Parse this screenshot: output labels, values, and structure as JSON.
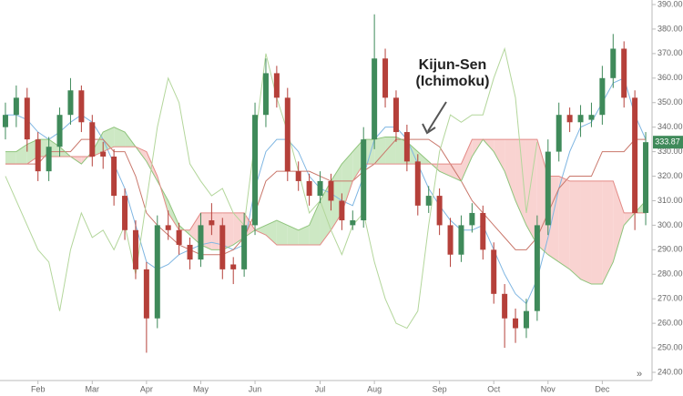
{
  "chart_data": {
    "type": "candlestick",
    "categories": [
      null,
      null,
      null,
      "Feb",
      null,
      null,
      null,
      null,
      "Mar",
      null,
      null,
      null,
      null,
      "Apr",
      null,
      null,
      null,
      null,
      "May",
      null,
      null,
      null,
      null,
      "Jun",
      null,
      null,
      null,
      null,
      null,
      "Jul",
      null,
      null,
      null,
      null,
      "Aug",
      null,
      null,
      null,
      null,
      null,
      "Sep",
      null,
      null,
      null,
      null,
      "Oct",
      null,
      null,
      null,
      null,
      "Nov",
      null,
      null,
      null,
      null,
      "Dec",
      null,
      null,
      null,
      null
    ],
    "open": [
      340,
      345,
      352,
      335,
      322,
      332,
      345,
      355,
      342,
      330,
      328,
      312,
      298,
      282,
      262,
      300,
      298,
      292,
      286,
      302,
      300,
      284,
      282,
      300,
      345,
      362,
      352,
      322,
      318,
      312,
      318,
      310,
      300,
      302,
      335,
      368,
      352,
      338,
      326,
      308,
      312,
      300,
      288,
      300,
      305,
      290,
      272,
      262,
      258,
      265,
      300,
      330,
      345,
      342,
      343,
      345,
      360,
      372,
      352,
      305
    ],
    "high": [
      350,
      357,
      356,
      338,
      336,
      348,
      360,
      357,
      345,
      334,
      331,
      315,
      302,
      285,
      304,
      306,
      301,
      295,
      305,
      309,
      303,
      287,
      305,
      350,
      368,
      365,
      356,
      326,
      321,
      322,
      321,
      313,
      306,
      340,
      386,
      372,
      355,
      341,
      329,
      316,
      315,
      303,
      304,
      309,
      308,
      293,
      276,
      266,
      270,
      304,
      335,
      350,
      348,
      349,
      350,
      365,
      378,
      375,
      355,
      338
    ],
    "low": [
      335,
      340,
      330,
      318,
      318,
      328,
      341,
      338,
      324,
      323,
      308,
      294,
      278,
      248,
      258,
      294,
      288,
      282,
      283,
      296,
      278,
      276,
      279,
      296,
      340,
      348,
      318,
      314,
      308,
      309,
      306,
      298,
      298,
      299,
      331,
      348,
      334,
      322,
      304,
      305,
      296,
      283,
      285,
      297,
      286,
      268,
      250,
      252,
      254,
      261,
      296,
      326,
      338,
      336,
      340,
      341,
      356,
      348,
      298,
      300
    ],
    "close": [
      345,
      352,
      335,
      322,
      332,
      345,
      355,
      342,
      328,
      328,
      312,
      298,
      282,
      262,
      300,
      298,
      292,
      286,
      300,
      300,
      282,
      282,
      300,
      345,
      362,
      352,
      322,
      318,
      312,
      318,
      310,
      302,
      302,
      335,
      368,
      352,
      338,
      326,
      308,
      312,
      300,
      288,
      300,
      305,
      290,
      272,
      262,
      258,
      265,
      300,
      330,
      345,
      342,
      345,
      345,
      360,
      372,
      352,
      305,
      333.87
    ],
    "up_color": "#3f8a5a",
    "down_color": "#b5403a",
    "lines": {
      "tenkan_sen": {
        "color": "#7fb6e2",
        "values": [
          345,
          345,
          343,
          338,
          335,
          338,
          342,
          345,
          342,
          335,
          325,
          315,
          300,
          285,
          282,
          284,
          288,
          290,
          292,
          293,
          292,
          290,
          292,
          315,
          330,
          335,
          335,
          330,
          320,
          315,
          313,
          310,
          308,
          320,
          335,
          340,
          340,
          335,
          325,
          315,
          308,
          302,
          298,
          298,
          300,
          290,
          280,
          272,
          268,
          278,
          295,
          315,
          330,
          340,
          342,
          350,
          358,
          360,
          345,
          335
        ]
      },
      "kijun_sen": {
        "color": "#c9776b",
        "values": [
          325,
          325,
          325,
          325,
          330,
          330,
          330,
          335,
          335,
          335,
          330,
          330,
          320,
          305,
          300,
          296,
          292,
          290,
          288,
          288,
          288,
          290,
          295,
          305,
          318,
          322,
          322,
          322,
          322,
          320,
          318,
          318,
          318,
          322,
          325,
          330,
          335,
          335,
          335,
          335,
          332,
          325,
          318,
          310,
          305,
          300,
          295,
          290,
          290,
          295,
          305,
          315,
          320,
          320,
          320,
          330,
          330,
          330,
          335,
          335
        ]
      },
      "senkou_span_a": {
        "color": "#8fc47c",
        "values": [
          330,
          330,
          333,
          335,
          335,
          332,
          328,
          325,
          330,
          338,
          340,
          338,
          332,
          326,
          318,
          310,
          300,
          296,
          292,
          290,
          290,
          292,
          295,
          298,
          300,
          302,
          300,
          298,
          300,
          310,
          318,
          325,
          330,
          335,
          335,
          336,
          336,
          334,
          330,
          326,
          322,
          320,
          318,
          328,
          335,
          330,
          322,
          310,
          300,
          292,
          288,
          285,
          282,
          278,
          276,
          276,
          285,
          300,
          305,
          310
        ]
      },
      "senkou_span_b": {
        "color": "#e38a86",
        "values": [
          325,
          325,
          325,
          328,
          328,
          328,
          328,
          328,
          328,
          330,
          332,
          332,
          332,
          330,
          320,
          305,
          298,
          298,
          305,
          305,
          305,
          305,
          305,
          298,
          296,
          292,
          292,
          292,
          292,
          292,
          298,
          305,
          318,
          325,
          325,
          325,
          325,
          325,
          325,
          325,
          325,
          325,
          325,
          335,
          335,
          335,
          335,
          335,
          335,
          335,
          320,
          320,
          318,
          318,
          318,
          318,
          318,
          305,
          305,
          305
        ]
      },
      "chikou_span": {
        "color": "#b3d69b",
        "values": [
          320,
          310,
          300,
          290,
          285,
          265,
          290,
          305,
          295,
          298,
          290,
          300,
          280,
          310,
          340,
          360,
          350,
          325,
          318,
          312,
          315,
          305,
          300,
          335,
          370,
          352,
          338,
          322,
          305,
          310,
          298,
          288,
          300,
          305,
          285,
          270,
          260,
          258,
          265,
          300,
          330,
          345,
          342,
          345,
          345,
          360,
          372,
          352,
          305,
          334,
          null,
          null,
          null,
          null,
          null,
          null,
          null,
          null,
          null,
          null
        ]
      }
    },
    "cloud_up_color": "#cde8c4",
    "cloud_down_color": "#f9d3d1",
    "ylim": [
      240,
      390
    ],
    "yticks": [
      {
        "value": 240,
        "label": "240.00"
      },
      {
        "value": 250,
        "label": "250.00"
      },
      {
        "value": 260,
        "label": "260.00"
      },
      {
        "value": 270,
        "label": "270.00"
      },
      {
        "value": 280,
        "label": "280.00"
      },
      {
        "value": 290,
        "label": "290.00"
      },
      {
        "value": 300,
        "label": "300.00"
      },
      {
        "value": 310,
        "label": "310.00"
      },
      {
        "value": 320,
        "label": "320.00"
      },
      {
        "value": 330,
        "label": "330.00"
      },
      {
        "value": 340,
        "label": "340.00"
      },
      {
        "value": 350,
        "label": "350.00"
      },
      {
        "value": 360,
        "label": "360.00"
      },
      {
        "value": 370,
        "label": "370.00"
      },
      {
        "value": 380,
        "label": "380.00"
      },
      {
        "value": 390,
        "label": "390.00"
      }
    ],
    "grid": false,
    "annotation": [
      "Kijun-Sen",
      "(Ichimoku)"
    ],
    "scroll_icon": "»"
  }
}
